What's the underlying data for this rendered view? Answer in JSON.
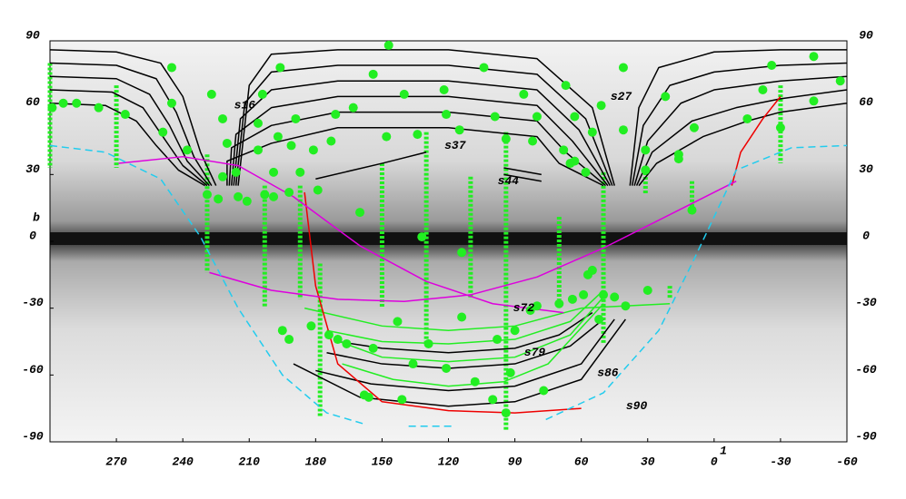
{
  "chart_data": {
    "type": "skymap",
    "xlabel": "1",
    "ylabel": "b",
    "xlim": [
      300,
      -60
    ],
    "ylim": [
      -90,
      90
    ],
    "xticks": [
      270,
      240,
      210,
      180,
      150,
      120,
      90,
      60,
      30,
      0,
      -30,
      -60
    ],
    "yticks": [
      90,
      60,
      30,
      0,
      -30,
      -60,
      -90
    ],
    "points": {
      "color": "#22ee22",
      "x": [
        147,
        245,
        196,
        104,
        41,
        -26,
        -45,
        -57,
        227,
        154,
        67,
        204,
        140,
        122,
        86,
        51,
        22,
        -22,
        -45,
        299,
        294,
        288,
        278,
        266,
        245,
        222,
        206,
        189,
        171,
        163,
        121,
        115,
        99,
        80,
        63,
        55,
        41,
        9,
        -15,
        -30,
        249,
        238,
        220,
        206,
        197,
        191,
        181,
        173,
        148,
        134,
        94,
        82,
        68,
        58,
        31,
        16,
        16,
        31,
        63,
        65,
        222,
        216,
        199,
        187,
        229,
        224,
        215,
        211,
        203,
        199,
        192,
        179,
        160,
        132,
        114,
        10,
        195,
        192,
        182,
        174,
        170,
        166,
        154,
        143,
        136,
        129,
        121,
        114,
        98,
        90,
        83,
        80,
        70,
        64,
        59,
        57,
        55,
        50,
        45,
        40,
        30,
        52,
        108,
        92,
        77,
        158,
        156,
        141,
        100,
        94
      ],
      "y": [
        88,
        78,
        78,
        78,
        78,
        79,
        83,
        72,
        66,
        75,
        70,
        66,
        66,
        68,
        66,
        61,
        65,
        68,
        63,
        60,
        62,
        62,
        60,
        57,
        62,
        55,
        53,
        55,
        57,
        60,
        57,
        50,
        56,
        56,
        56,
        49,
        50,
        51,
        55,
        51,
        49,
        41,
        44,
        41,
        47,
        43,
        41,
        45,
        47,
        48,
        46,
        45,
        41,
        31,
        41,
        39,
        37,
        32,
        36,
        35,
        29,
        31,
        31,
        31,
        21,
        19,
        20,
        18,
        21,
        20,
        22,
        23,
        13,
        2,
        -5,
        14,
        -40,
        -44,
        -38,
        -42,
        -44,
        -46,
        -48,
        -36,
        -55,
        -46,
        -57,
        -34,
        -44,
        -40,
        -31,
        -29,
        -28,
        -26,
        -24,
        -15,
        -13,
        -24,
        -25,
        -29,
        -22,
        -35,
        -63,
        -59,
        -67,
        -69,
        -70,
        -71,
        -71,
        -77
      ]
    },
    "columns": {
      "color": "#22ee22",
      "x": [
        [
          300,
          300
        ],
        [
          270,
          270
        ],
        [
          229,
          229
        ],
        [
          203,
          203
        ],
        [
          187,
          187
        ],
        [
          178,
          178
        ],
        [
          150,
          150
        ],
        [
          130,
          130
        ],
        [
          110,
          110
        ],
        [
          94,
          94
        ],
        [
          70,
          70
        ],
        [
          50,
          50
        ],
        [
          31,
          31
        ],
        [
          20,
          20
        ],
        [
          10,
          10
        ],
        [
          -30,
          -30
        ]
      ],
      "y": [
        [
          80,
          33
        ],
        [
          70,
          33
        ],
        [
          39,
          -14
        ],
        [
          25,
          -30
        ],
        [
          25,
          -26
        ],
        [
          -10,
          -79
        ],
        [
          35,
          -30
        ],
        [
          49,
          -46
        ],
        [
          29,
          -26
        ],
        [
          49,
          -85
        ],
        [
          11,
          -26
        ],
        [
          31,
          -46
        ],
        [
          33,
          21
        ],
        [
          -20,
          -26
        ],
        [
          27,
          13
        ],
        [
          70,
          35
        ]
      ]
    },
    "lines": [
      {
        "color": "#000000",
        "x": [
          300,
          270,
          250,
          240,
          232,
          225
        ],
        "y": [
          86,
          85,
          80,
          65,
          40,
          25
        ]
      },
      {
        "color": "#000000",
        "x": [
          300,
          270,
          252,
          243,
          235,
          227
        ],
        "y": [
          80,
          79,
          73,
          58,
          38,
          25
        ]
      },
      {
        "color": "#000000",
        "x": [
          300,
          270,
          255,
          246,
          238,
          228
        ],
        "y": [
          74,
          73,
          66,
          52,
          36,
          25
        ]
      },
      {
        "color": "#000000",
        "x": [
          300,
          272,
          258,
          249,
          240,
          229
        ],
        "y": [
          68,
          67,
          60,
          47,
          34,
          25
        ]
      },
      {
        "color": "#000000",
        "x": [
          300,
          275,
          261,
          252,
          242,
          230
        ],
        "y": [
          62,
          61,
          54,
          43,
          32,
          25
        ]
      },
      {
        "color": "#000000",
        "x": [
          215,
          210,
          200,
          170,
          120,
          80,
          55,
          45
        ],
        "y": [
          25,
          70,
          84,
          86,
          86,
          82,
          60,
          25
        ]
      },
      {
        "color": "#000000",
        "x": [
          216,
          212,
          200,
          170,
          120,
          80,
          58,
          46
        ],
        "y": [
          25,
          62,
          76,
          79,
          79,
          75,
          55,
          25
        ]
      },
      {
        "color": "#000000",
        "x": [
          217,
          214,
          200,
          170,
          120,
          80,
          61,
          47
        ],
        "y": [
          25,
          55,
          68,
          72,
          72,
          68,
          50,
          25
        ]
      },
      {
        "color": "#000000",
        "x": [
          218,
          216,
          200,
          170,
          120,
          80,
          64,
          48
        ],
        "y": [
          25,
          48,
          60,
          65,
          65,
          61,
          45,
          25
        ]
      },
      {
        "color": "#000000",
        "x": [
          219,
          218,
          200,
          170,
          120,
          80,
          67,
          49
        ],
        "y": [
          25,
          42,
          52,
          58,
          58,
          54,
          40,
          25
        ]
      },
      {
        "color": "#000000",
        "x": [
          220,
          220,
          200,
          170,
          120,
          80,
          70,
          50
        ],
        "y": [
          25,
          36,
          44,
          51,
          51,
          47,
          35,
          25
        ]
      },
      {
        "color": "#000000",
        "x": [
          38,
          34,
          25,
          0,
          -30,
          -60
        ],
        "y": [
          25,
          60,
          78,
          85,
          86,
          86
        ]
      },
      {
        "color": "#000000",
        "x": [
          37,
          32,
          20,
          0,
          -30,
          -60
        ],
        "y": [
          25,
          52,
          70,
          76,
          79,
          80
        ]
      },
      {
        "color": "#000000",
        "x": [
          36,
          30,
          15,
          0,
          -30,
          -60
        ],
        "y": [
          25,
          45,
          62,
          68,
          72,
          74
        ]
      },
      {
        "color": "#000000",
        "x": [
          35,
          28,
          10,
          -10,
          -30,
          -60
        ],
        "y": [
          25,
          40,
          54,
          60,
          64,
          68
        ]
      },
      {
        "color": "#000000",
        "x": [
          34,
          26,
          5,
          -15,
          -30,
          -60
        ],
        "y": [
          25,
          35,
          47,
          54,
          58,
          62
        ]
      },
      {
        "color": "#000000",
        "x": [
          180,
          150,
          130
        ],
        "y": [
          28,
          35,
          40
        ]
      },
      {
        "color": "#000000",
        "x": [
          95,
          78
        ],
        "y": [
          33,
          30
        ]
      },
      {
        "color": "#000000",
        "x": [
          95,
          78
        ],
        "y": [
          30,
          27
        ]
      },
      {
        "color": "#000000",
        "x": [
          170,
          150,
          120,
          90,
          70,
          55
        ],
        "y": [
          -45,
          -48,
          -50,
          -48,
          -42,
          -32
        ]
      },
      {
        "color": "#000000",
        "x": [
          175,
          150,
          120,
          90,
          65,
          50
        ],
        "y": [
          -50,
          -55,
          -57,
          -55,
          -47,
          -35
        ]
      },
      {
        "color": "#000000",
        "x": [
          180,
          155,
          120,
          90,
          60,
          45
        ],
        "y": [
          -58,
          -64,
          -67,
          -65,
          -55,
          -35
        ]
      },
      {
        "color": "#000000",
        "x": [
          190,
          160,
          120,
          90,
          60,
          40
        ],
        "y": [
          -55,
          -70,
          -74,
          -72,
          -62,
          -35
        ]
      },
      {
        "color": "#22ee22",
        "x": [
          185,
          150,
          120,
          90,
          60,
          20
        ],
        "y": [
          -30,
          -38,
          -40,
          -38,
          -30,
          -28
        ]
      },
      {
        "color": "#22ee22",
        "x": [
          175,
          150,
          120,
          90,
          65,
          50
        ],
        "y": [
          -40,
          -45,
          -46,
          -44,
          -36,
          -22
        ]
      },
      {
        "color": "#22ee22",
        "x": [
          172,
          150,
          120,
          90,
          65,
          50
        ],
        "y": [
          -44,
          -52,
          -54,
          -52,
          -42,
          -25
        ]
      },
      {
        "color": "#22ee22",
        "x": [
          168,
          145,
          120,
          95,
          75,
          50
        ],
        "y": [
          -55,
          -62,
          -65,
          -63,
          -55,
          -28
        ]
      },
      {
        "color": "#ee0000",
        "x": [
          185,
          180,
          170,
          150,
          120,
          90,
          60
        ],
        "y": [
          22,
          -20,
          -55,
          -72,
          -76,
          -77,
          -75
        ]
      },
      {
        "color": "#ee0000",
        "x": [
          -30,
          -22,
          -12,
          -8
        ],
        "y": [
          65,
          55,
          40,
          25
        ]
      },
      {
        "color": "#dd00dd",
        "x": [
          269,
          240,
          215,
          190,
          160,
          130,
          100,
          68
        ],
        "y": [
          35,
          38,
          34,
          20,
          -2,
          -18,
          -28,
          -32
        ]
      },
      {
        "color": "#dd00dd",
        "x": [
          228,
          200,
          170,
          140,
          110,
          80,
          50,
          20,
          -10
        ],
        "y": [
          -14,
          -22,
          -26,
          -27,
          -24,
          -16,
          -3,
          12,
          27
        ]
      },
      {
        "color": "#22ccee",
        "dashed": true,
        "x": [
          300,
          275,
          250,
          232,
          215,
          195,
          175,
          158
        ],
        "y": [
          43,
          40,
          28,
          2,
          -30,
          -60,
          -77,
          -82
        ]
      },
      {
        "color": "#22ccee",
        "dashed": true,
        "x": [
          138,
          117
        ],
        "y": [
          -83,
          -83
        ]
      },
      {
        "color": "#22ccee",
        "dashed": true,
        "x": [
          76,
          50,
          25,
          10,
          -10,
          -35,
          -60
        ],
        "y": [
          -80,
          -68,
          -40,
          -10,
          32,
          42,
          43
        ]
      }
    ],
    "annotations": [
      {
        "text": "s16",
        "x": 212,
        "y": 61
      },
      {
        "text": "s27",
        "x": 42,
        "y": 65
      },
      {
        "text": "s37",
        "x": 117,
        "y": 43
      },
      {
        "text": "s44",
        "x": 93,
        "y": 27
      },
      {
        "text": "s72",
        "x": 86,
        "y": -30
      },
      {
        "text": "s79",
        "x": 81,
        "y": -50
      },
      {
        "text": "s86",
        "x": 48,
        "y": -59
      },
      {
        "text": "s90",
        "x": 35,
        "y": -74
      }
    ]
  }
}
